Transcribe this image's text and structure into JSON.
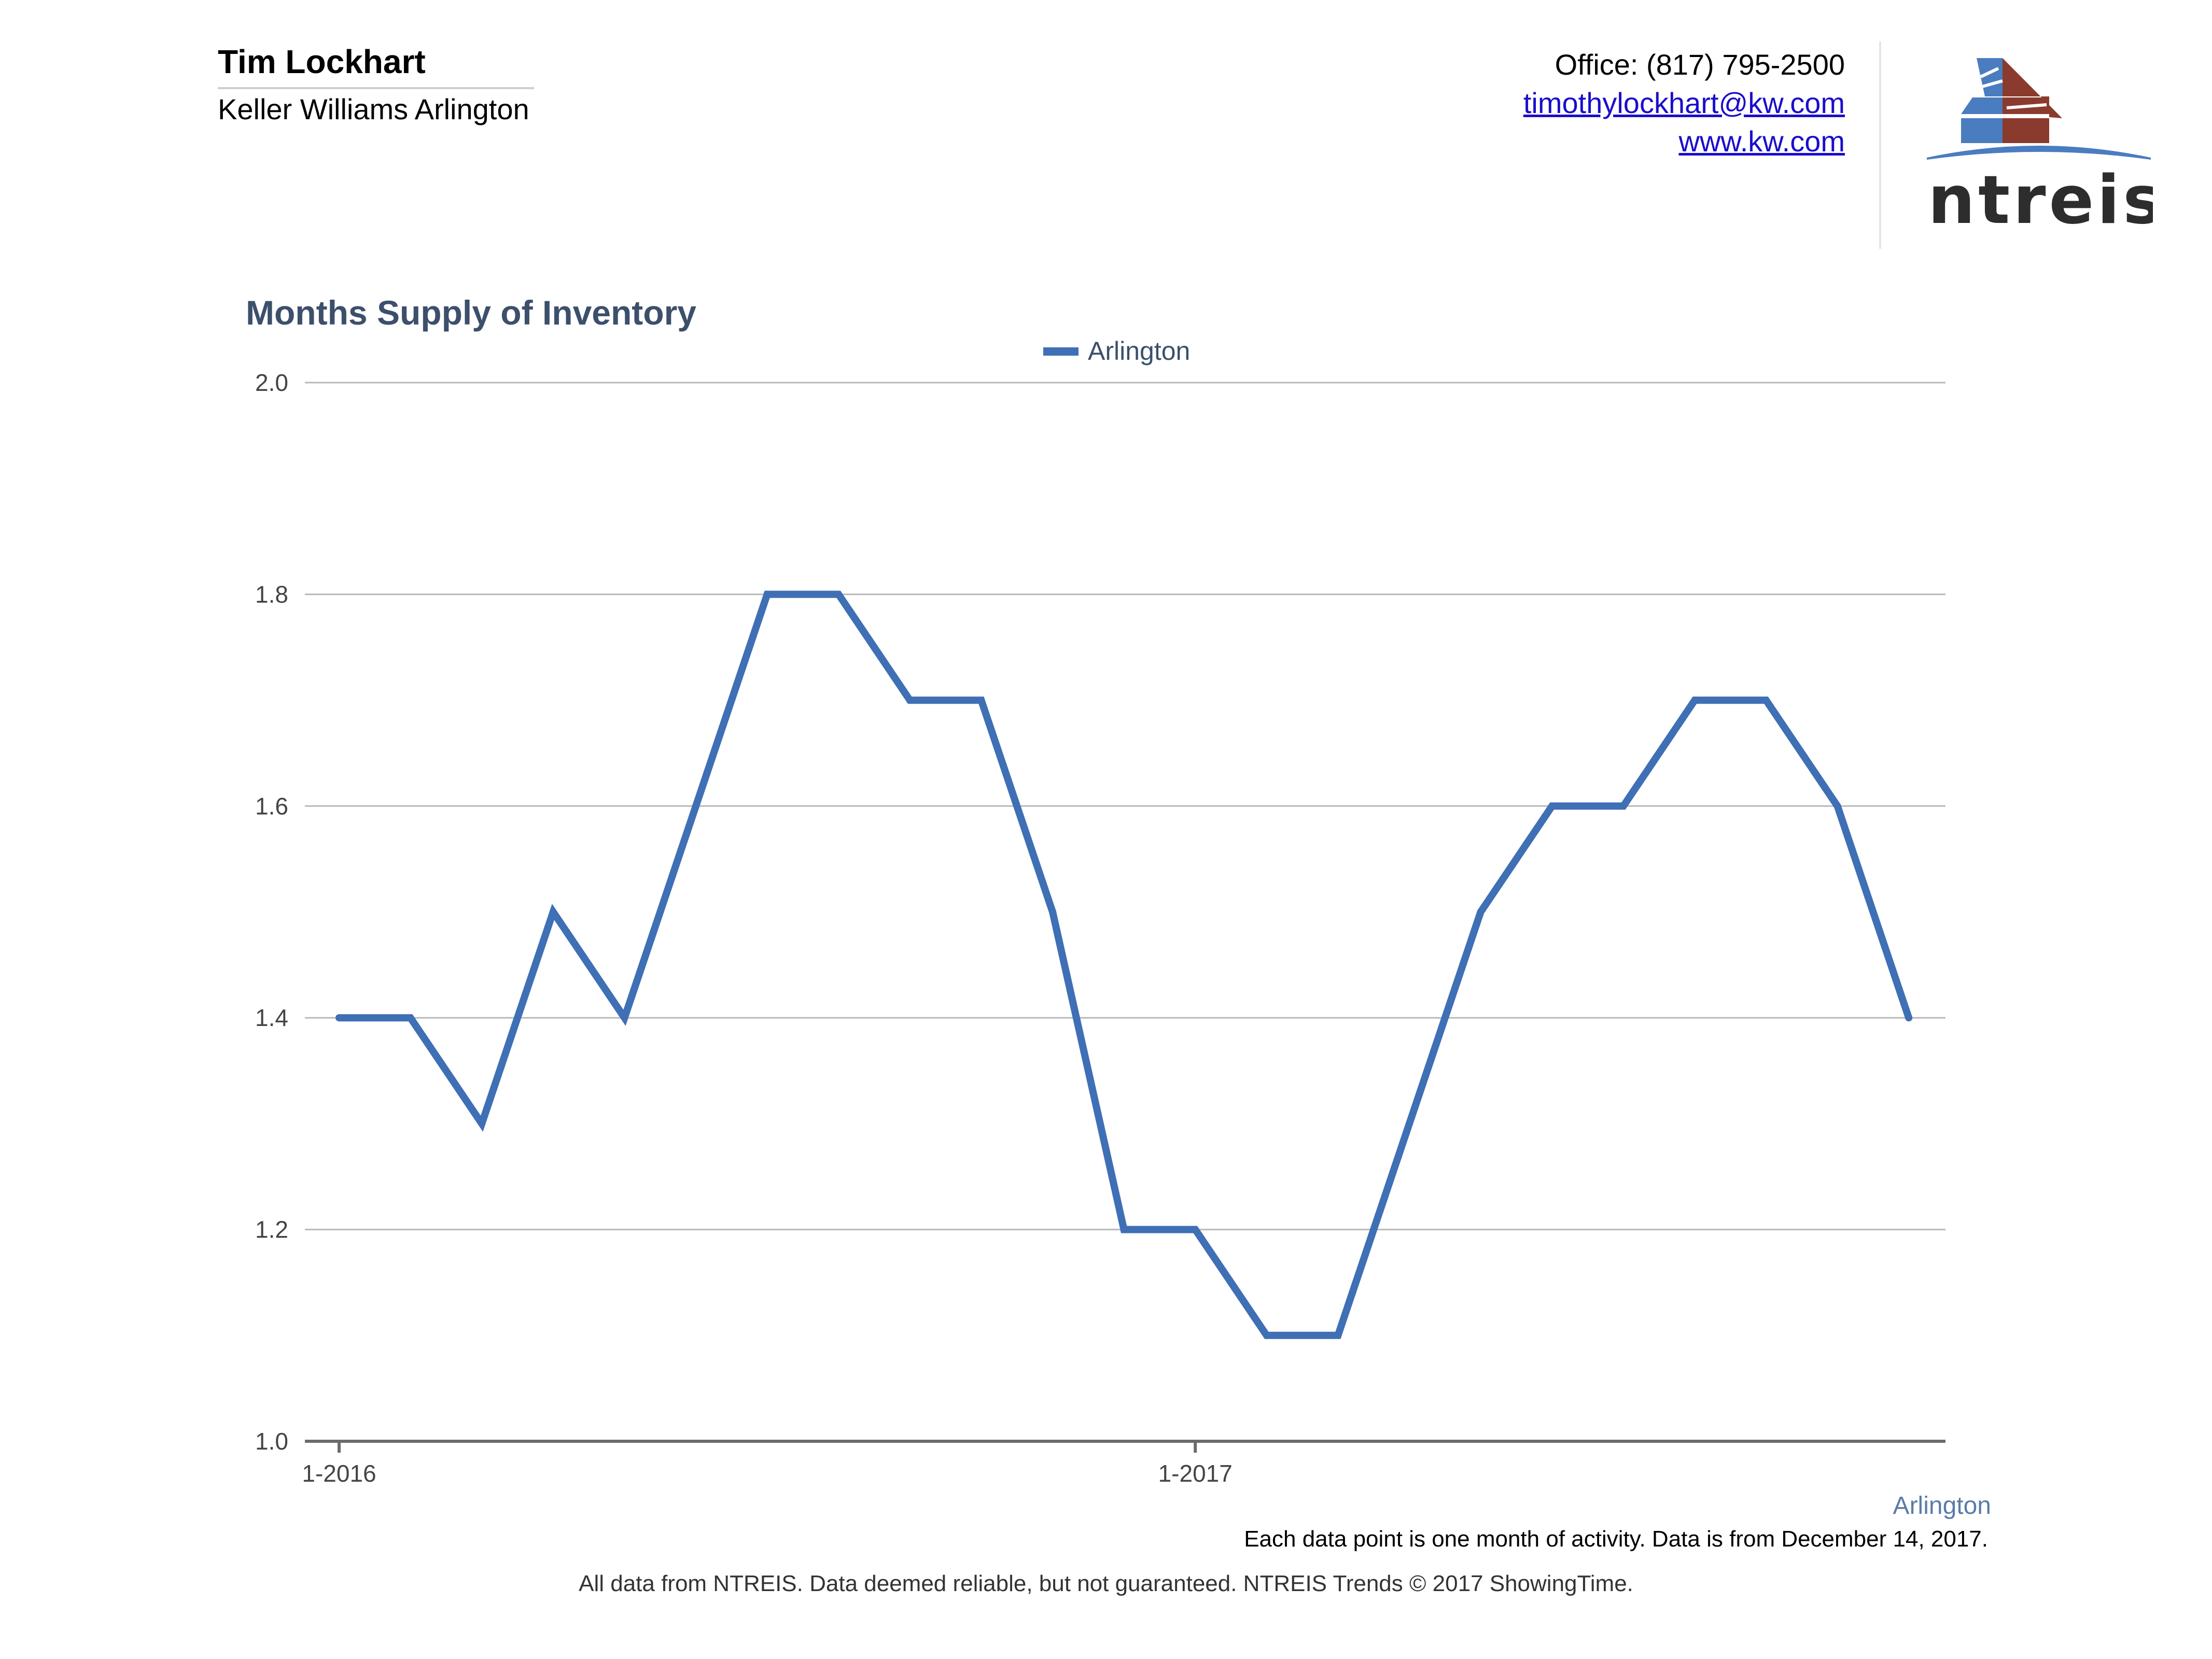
{
  "agent": {
    "name": "Tim Lockhart",
    "company": "Keller Williams Arlington"
  },
  "contact": {
    "office": "Office: (817) 795-2500",
    "email": "timothylockhart@kw.com",
    "website": "www.kw.com"
  },
  "logo": {
    "text": "ntreis",
    "colors": {
      "blue": "#4a7cc0",
      "red": "#8b3a2e",
      "dark": "#2d2d2d"
    }
  },
  "colors": {
    "series": "#3f6fb5",
    "title": "#3c4f6b",
    "grid": "#b9b9b9",
    "axis": "#6b6b6b",
    "source_label": "#5b7ba8"
  },
  "chart_data": {
    "type": "line",
    "title": "Months Supply of Inventory",
    "xlabel": "",
    "ylabel": "",
    "x_tick_labels": [
      "1-2016",
      "1-2017"
    ],
    "y_tick_labels": [
      "2.0",
      "1.8",
      "1.6",
      "1.4",
      "1.2",
      "1.0"
    ],
    "ylim": [
      1.0,
      2.0
    ],
    "grid": true,
    "legend_position": "top-center",
    "x": [
      "1-2016",
      "2-2016",
      "3-2016",
      "4-2016",
      "5-2016",
      "6-2016",
      "7-2016",
      "8-2016",
      "9-2016",
      "10-2016",
      "11-2016",
      "12-2016",
      "1-2017",
      "2-2017",
      "3-2017",
      "4-2017",
      "5-2017",
      "6-2017",
      "7-2017",
      "8-2017",
      "9-2017",
      "10-2017",
      "11-2017"
    ],
    "series": [
      {
        "name": "Arlington",
        "values": [
          1.4,
          1.4,
          1.3,
          1.5,
          1.4,
          1.6,
          1.8,
          1.8,
          1.7,
          1.7,
          1.5,
          1.2,
          1.2,
          1.1,
          1.1,
          1.3,
          1.5,
          1.6,
          1.6,
          1.7,
          1.7,
          1.6,
          1.4
        ]
      }
    ],
    "source_label": "Arlington",
    "note": "Each data point is one month of activity. Data is from December 14, 2017."
  },
  "footer": "All data from NTREIS. Data deemed reliable, but not guaranteed. NTREIS Trends © 2017 ShowingTime."
}
